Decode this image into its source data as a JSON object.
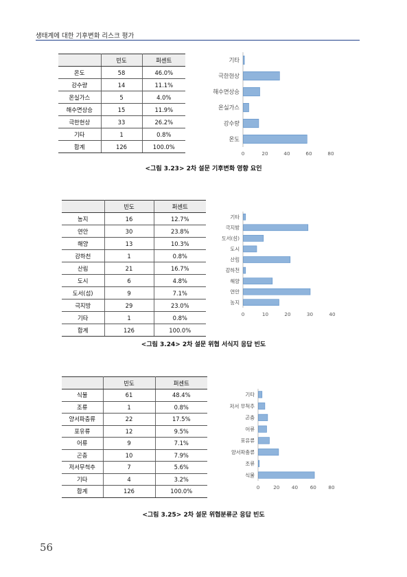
{
  "header": {
    "title": "생태계에 대한 기후변화 리스크 평가"
  },
  "page_number": "56",
  "columns": {
    "freq": "빈도",
    "pct": "퍼센트"
  },
  "figures": [
    {
      "caption": "<그림 3.23> 2차 설문 기후변화 영향 요인",
      "rows": [
        {
          "label": "온도",
          "freq": "58",
          "pct": "46.0%"
        },
        {
          "label": "강수량",
          "freq": "14",
          "pct": "11.1%"
        },
        {
          "label": "온실가스",
          "freq": "5",
          "pct": "4.0%"
        },
        {
          "label": "해수면상승",
          "freq": "15",
          "pct": "11.9%"
        },
        {
          "label": "극한현상",
          "freq": "33",
          "pct": "26.2%"
        },
        {
          "label": "기타",
          "freq": "1",
          "pct": "0.8%"
        },
        {
          "label": "합계",
          "freq": "126",
          "pct": "100.0%"
        }
      ]
    },
    {
      "caption": "<그림 3.24> 2차 설문 위협 서식지 응답 빈도",
      "rows": [
        {
          "label": "농지",
          "freq": "16",
          "pct": "12.7%"
        },
        {
          "label": "연안",
          "freq": "30",
          "pct": "23.8%"
        },
        {
          "label": "해양",
          "freq": "13",
          "pct": "10.3%"
        },
        {
          "label": "강하천",
          "freq": "1",
          "pct": "0.8%"
        },
        {
          "label": "산림",
          "freq": "21",
          "pct": "16.7%"
        },
        {
          "label": "도시",
          "freq": "6",
          "pct": "4.8%"
        },
        {
          "label": "도서(섬)",
          "freq": "9",
          "pct": "7.1%"
        },
        {
          "label": "극지방",
          "freq": "29",
          "pct": "23.0%"
        },
        {
          "label": "기타",
          "freq": "1",
          "pct": "0.8%"
        },
        {
          "label": "합계",
          "freq": "126",
          "pct": "100.0%"
        }
      ]
    },
    {
      "caption": "<그림 3.25> 2차 설문 위협분류군 응답 빈도",
      "rows": [
        {
          "label": "식물",
          "freq": "61",
          "pct": "48.4%"
        },
        {
          "label": "조류",
          "freq": "1",
          "pct": "0.8%"
        },
        {
          "label": "양서파충류",
          "freq": "22",
          "pct": "17.5%"
        },
        {
          "label": "포유류",
          "freq": "12",
          "pct": "9.5%"
        },
        {
          "label": "어류",
          "freq": "9",
          "pct": "7.1%"
        },
        {
          "label": "곤충",
          "freq": "10",
          "pct": "7.9%"
        },
        {
          "label": "저서무척추",
          "freq": "7",
          "pct": "5.6%"
        },
        {
          "label": "기타",
          "freq": "4",
          "pct": "3.2%"
        },
        {
          "label": "합계",
          "freq": "126",
          "pct": "100.0%"
        }
      ]
    }
  ],
  "chart_data": [
    {
      "type": "bar",
      "orientation": "horizontal",
      "categories": [
        "온도",
        "강수량",
        "온실가스",
        "해수면상승",
        "극한현상",
        "기타"
      ],
      "values": [
        58,
        14,
        5,
        15,
        33,
        1
      ],
      "xlim": [
        0,
        80
      ],
      "ticks": [
        "0",
        "20",
        "40",
        "60",
        "80"
      ],
      "bar_color": "#8fb4dc",
      "bar_edge": "#5b8fc8"
    },
    {
      "type": "bar",
      "orientation": "horizontal",
      "categories": [
        "농지",
        "연안",
        "해양",
        "강하천",
        "산림",
        "도시",
        "도서(섬)",
        "극지방",
        "기타"
      ],
      "values": [
        16,
        30,
        13,
        1,
        21,
        6,
        9,
        29,
        1
      ],
      "xlim": [
        0,
        40
      ],
      "ticks": [
        "0",
        "10",
        "20",
        "30",
        "40"
      ],
      "bar_color": "#8fb4dc",
      "bar_edge": "#5b8fc8"
    },
    {
      "type": "bar",
      "orientation": "horizontal",
      "categories": [
        "식물",
        "조류",
        "양서파충류",
        "포유류",
        "어류",
        "곤충",
        "저서 무척추",
        "기타"
      ],
      "values": [
        61,
        1,
        22,
        12,
        9,
        10,
        7,
        4
      ],
      "xlim": [
        0,
        80
      ],
      "ticks": [
        "0",
        "20",
        "40",
        "60",
        "80"
      ],
      "bar_color": "#8fb4dc",
      "bar_edge": "#5b8fc8"
    }
  ]
}
